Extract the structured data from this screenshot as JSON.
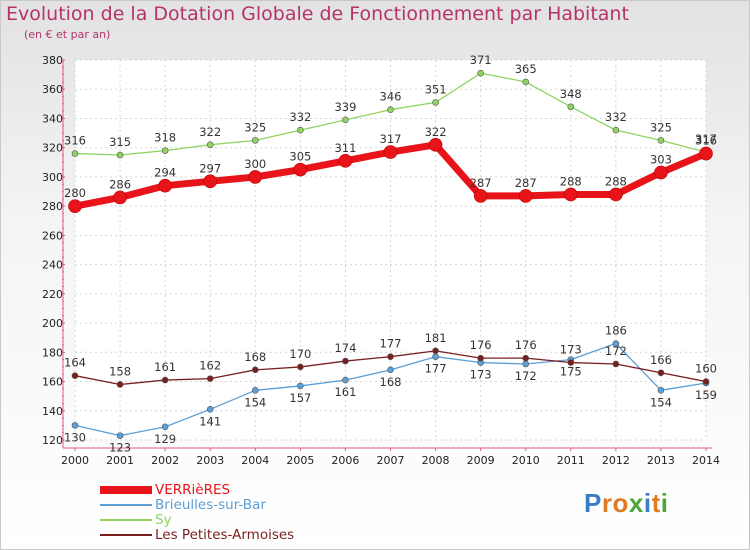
{
  "header": {
    "title": "Evolution de la Dotation Globale de Fonctionnement par Habitant",
    "subtitle": "(en € et par an)"
  },
  "logo": {
    "letters": [
      "P",
      "r",
      "o",
      "x",
      "i",
      "t",
      "i"
    ],
    "colors": [
      "#3b7dc4",
      "#e07b22",
      "#e07b22",
      "#4aa83a",
      "#3b7dc4",
      "#e07b22",
      "#4aa83a"
    ]
  },
  "chart_data": {
    "type": "line",
    "x": [
      2000,
      2001,
      2002,
      2003,
      2004,
      2005,
      2006,
      2007,
      2008,
      2009,
      2010,
      2011,
      2012,
      2013,
      2014
    ],
    "ylim": [
      120,
      380
    ],
    "yticks": [
      120,
      140,
      160,
      180,
      200,
      220,
      240,
      260,
      280,
      300,
      320,
      340,
      360,
      380
    ],
    "grid": true,
    "legend_position": "bottom-left",
    "series": [
      {
        "name": "VERRièRES",
        "color": "#e8141a",
        "values": [
          280,
          286,
          294,
          297,
          300,
          305,
          311,
          317,
          322,
          287,
          287,
          288,
          288,
          303,
          316
        ]
      },
      {
        "name": "Brieulles-sur-Bar",
        "color": "#5b9fd6",
        "values": [
          130,
          123,
          129,
          141,
          154,
          157,
          161,
          168,
          177,
          173,
          172,
          175,
          186,
          154,
          159
        ]
      },
      {
        "name": "Sy",
        "color": "#8fd460",
        "values": [
          316,
          315,
          318,
          322,
          325,
          332,
          339,
          346,
          351,
          371,
          365,
          348,
          332,
          325,
          317
        ]
      },
      {
        "name": "Les Petites-Armoises",
        "color": "#7a1f1f",
        "values": [
          164,
          158,
          161,
          162,
          168,
          170,
          174,
          177,
          181,
          176,
          176,
          173,
          172,
          166,
          160
        ]
      }
    ]
  }
}
